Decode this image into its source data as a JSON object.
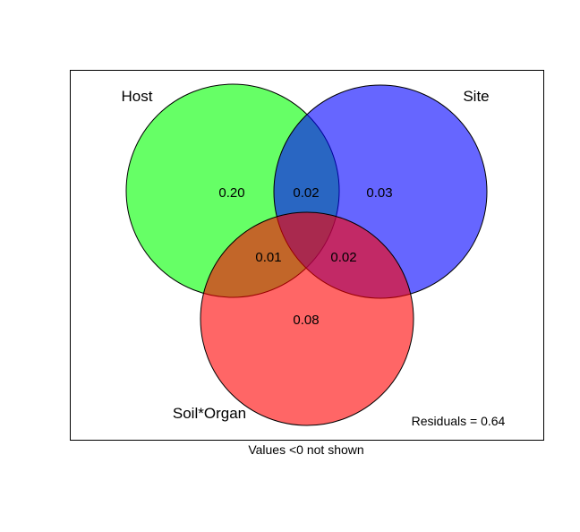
{
  "sets": [
    {
      "name": "Host",
      "color": "#00FF00"
    },
    {
      "name": "Site",
      "color": "#0000FF"
    },
    {
      "name": "Soil*Organ",
      "color": "#FF0000"
    }
  ],
  "regions": {
    "host_only": "0.20",
    "host_site": "0.02",
    "site_only": "0.03",
    "host_soil": "0.01",
    "site_soil": "0.02",
    "soil_only": "0.08"
  },
  "residuals": "Residuals = 0.64",
  "footnote": "Values <0 not shown"
}
